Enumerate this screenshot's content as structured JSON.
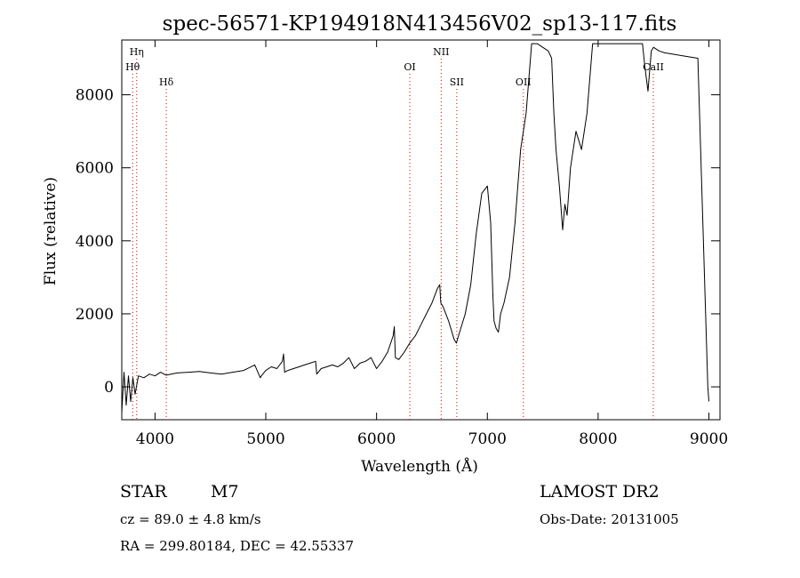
{
  "chart_data": {
    "type": "line",
    "title": "spec-56571-KP194918N413456V02_sp13-117.fits",
    "xlabel": "Wavelength (Å)",
    "ylabel": "Flux (relative)",
    "xlim": [
      3700,
      9100
    ],
    "ylim": [
      -900,
      9500
    ],
    "x_ticks": [
      4000,
      5000,
      6000,
      7000,
      8000,
      9000
    ],
    "y_ticks": [
      0,
      2000,
      4000,
      6000,
      8000
    ],
    "grid": false,
    "line_color": "#000000",
    "marker_color": "#cc0000",
    "series": [
      {
        "x": [
          3700,
          3720,
          3740,
          3760,
          3780,
          3800,
          3820,
          3850,
          3900,
          3950,
          4000,
          4050,
          4100,
          4200,
          4300,
          4400,
          4500,
          4600,
          4700,
          4800,
          4900,
          4950,
          4960,
          5000,
          5050,
          5100,
          5150,
          5160,
          5170,
          5200,
          5250,
          5300,
          5350,
          5400,
          5450,
          5460,
          5500,
          5550,
          5600,
          5650,
          5700,
          5750,
          5800,
          5850,
          5900,
          5950,
          6000,
          6050,
          6100,
          6150,
          6160,
          6170,
          6200,
          6250,
          6300,
          6350,
          6400,
          6450,
          6500,
          6550,
          6570,
          6580,
          6600,
          6650,
          6700,
          6720,
          6750,
          6800,
          6850,
          6900,
          6950,
          7000,
          7030,
          7050,
          7060,
          7080,
          7100,
          7120,
          7150,
          7200,
          7250,
          7300,
          7350,
          7400,
          7420,
          7450,
          7500,
          7550,
          7580,
          7600,
          7620,
          7650,
          7680,
          7700,
          7720,
          7750,
          7800,
          7850,
          7900,
          7950,
          7960,
          8000,
          8100,
          8200,
          8300,
          8400,
          8420,
          8450,
          8480,
          8500,
          8550,
          8600,
          8700,
          8800,
          8900,
          8990,
          9000
        ],
        "y": [
          -700,
          400,
          -500,
          300,
          -400,
          250,
          -200,
          300,
          250,
          350,
          300,
          400,
          320,
          380,
          400,
          420,
          380,
          350,
          400,
          450,
          600,
          250,
          300,
          450,
          550,
          500,
          700,
          900,
          400,
          450,
          500,
          550,
          600,
          650,
          700,
          350,
          500,
          550,
          600,
          550,
          650,
          800,
          500,
          650,
          700,
          800,
          500,
          700,
          950,
          1400,
          1650,
          800,
          750,
          950,
          1200,
          1400,
          1700,
          2000,
          2300,
          2700,
          2800,
          2300,
          2200,
          1800,
          1300,
          1200,
          1500,
          2000,
          2800,
          4200,
          5300,
          5500,
          4500,
          2500,
          1800,
          1600,
          1500,
          2000,
          2300,
          3000,
          4500,
          6500,
          7500,
          9400,
          9400,
          9400,
          9300,
          9200,
          9000,
          7500,
          6500,
          5500,
          4300,
          5000,
          4700,
          6000,
          7000,
          6500,
          7500,
          9400,
          9400,
          9400,
          9400,
          9400,
          9400,
          9400,
          8800,
          8100,
          9200,
          9300,
          9200,
          9150,
          9100,
          9050,
          9000,
          0,
          -400
        ]
      }
    ],
    "line_markers": [
      {
        "label": "Hη",
        "x": 3835,
        "row": 0
      },
      {
        "label": "Hθ",
        "x": 3798,
        "row": 1
      },
      {
        "label": "Hδ",
        "x": 4102,
        "row": 2
      },
      {
        "label": "OI",
        "x": 6300,
        "row": 1
      },
      {
        "label": "NII",
        "x": 6583,
        "row": 0
      },
      {
        "label": "SII",
        "x": 6724,
        "row": 2
      },
      {
        "label": "OII",
        "x": 7325,
        "row": 2
      },
      {
        "label": "CaII",
        "x": 8498,
        "row": 1
      }
    ]
  },
  "info": {
    "object_type": "STAR",
    "subclass": "M7",
    "survey": "LAMOST DR2",
    "cz": "cz = 89.0 ± 4.8 km/s",
    "obs_date": "Obs-Date: 20131005",
    "coords": "RA = 299.80184, DEC =  42.55337"
  }
}
